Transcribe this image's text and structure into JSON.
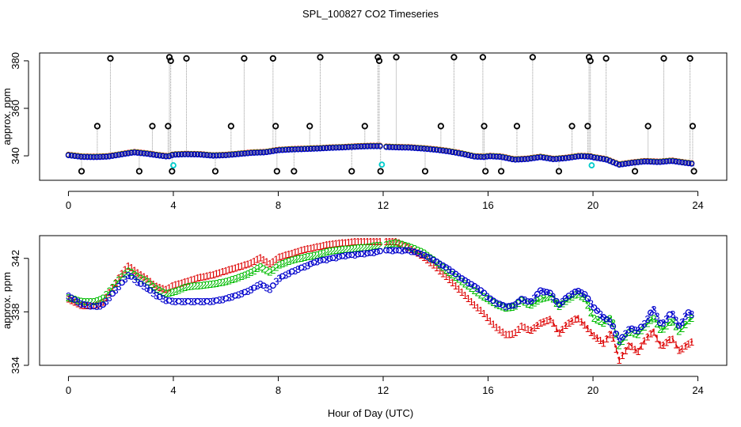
{
  "title": "SPL_100827  CO2 Timeseries",
  "xlabel": "Hour of Day (UTC)",
  "colors": {
    "series1": "#dd0000",
    "series2": "#00bb00",
    "series3": "#0000cc",
    "spike": "#000000",
    "outlier": "#00cccc",
    "stem": "#999999"
  },
  "chart_data": [
    {
      "type": "scatter",
      "panel": "top",
      "ylabel": "approx. ppm",
      "xlim": [
        -1.1,
        25.1
      ],
      "ylim": [
        329.7,
        383.3
      ],
      "xticks": [
        0,
        4,
        8,
        12,
        16,
        20,
        24
      ],
      "yticks": [
        340,
        360,
        380
      ],
      "baseline": {
        "x": [
          0,
          0.5,
          1,
          1.5,
          2,
          2.5,
          3,
          3.5,
          3.8,
          4,
          4.5,
          5,
          5.5,
          6,
          6.5,
          7,
          7.5,
          8,
          8.5,
          9,
          9.5,
          10,
          10.5,
          11,
          11.5,
          11.9,
          12,
          12.5,
          13,
          13.5,
          14,
          14.5,
          15,
          15.5,
          15.9,
          16,
          16.5,
          17,
          17.5,
          18,
          18.5,
          19,
          19.5,
          19.9,
          20,
          20.5,
          21,
          21.5,
          22,
          22.5,
          23,
          23.5,
          23.8
        ],
        "values": [
          340.2,
          339.5,
          339.4,
          339.6,
          340.5,
          341.4,
          340.8,
          340.0,
          339.6,
          340.4,
          340.6,
          340.5,
          340.0,
          340.2,
          340.7,
          341.2,
          341.4,
          342.3,
          342.6,
          342.8,
          343.0,
          343.3,
          343.5,
          343.8,
          344.0,
          344.0,
          343.7,
          343.5,
          343.4,
          343.0,
          342.5,
          341.8,
          340.8,
          339.6,
          339.4,
          339.8,
          339.5,
          338.3,
          338.6,
          339.4,
          338.5,
          339.0,
          339.8,
          339.6,
          339.3,
          338.4,
          336.2,
          337.0,
          337.6,
          337.3,
          337.8,
          337.0,
          336.6
        ]
      },
      "spikes": {
        "x": [
          0.5,
          1.1,
          1.6,
          2.7,
          3.2,
          3.8,
          3.85,
          3.9,
          3.95,
          4.5,
          5.6,
          6.2,
          6.7,
          7.8,
          7.9,
          7.95,
          8.6,
          9.2,
          9.6,
          10.8,
          11.3,
          11.8,
          11.85,
          11.9,
          12.5,
          13.6,
          14.2,
          14.7,
          15.8,
          15.85,
          15.9,
          16.5,
          17.1,
          17.7,
          18.7,
          19.2,
          19.8,
          19.85,
          19.9,
          20.5,
          21.6,
          22.1,
          22.7,
          23.7,
          23.8,
          23.85
        ],
        "values": [
          333.5,
          352.5,
          381.0,
          333.5,
          352.5,
          352.5,
          381.5,
          380.0,
          333.5,
          381.0,
          333.5,
          352.5,
          381.0,
          381.0,
          352.5,
          333.5,
          333.5,
          352.5,
          381.5,
          333.5,
          352.5,
          381.5,
          380.0,
          333.5,
          381.5,
          333.5,
          352.5,
          381.5,
          381.5,
          352.5,
          333.5,
          333.5,
          352.5,
          381.5,
          333.5,
          352.5,
          352.5,
          381.5,
          380.0,
          381.0,
          333.5,
          352.5,
          381.0,
          381.0,
          352.5,
          333.5
        ]
      },
      "outliers": {
        "x": [
          4.0,
          11.95,
          19.95
        ],
        "values": [
          336.0,
          336.3,
          336.0
        ]
      }
    },
    {
      "type": "scatter",
      "panel": "bottom",
      "ylabel": "approx. ppm",
      "xlim": [
        -1.1,
        25.1
      ],
      "ylim": [
        334.0,
        343.7
      ],
      "xticks": [
        0,
        4,
        8,
        12,
        16,
        20,
        24
      ],
      "yticks": [
        334,
        338,
        342
      ],
      "marker_labels": [
        "1",
        "2",
        "3"
      ],
      "x": [
        0,
        0.5,
        1,
        1.3,
        2,
        2.3,
        2.6,
        3,
        3.3,
        3.7,
        4,
        4.5,
        5,
        5.5,
        6,
        6.5,
        7,
        7.3,
        7.7,
        8,
        8.5,
        9,
        9.5,
        10,
        10.5,
        11,
        11.5,
        11.8,
        12,
        12.5,
        13,
        13.5,
        14,
        14.5,
        15,
        15.5,
        15.8,
        16,
        16.3,
        16.7,
        17,
        17.3,
        17.6,
        18,
        18.4,
        18.7,
        19,
        19.4,
        19.7,
        20,
        20.4,
        20.7,
        21,
        21.4,
        21.7,
        22,
        22.3,
        22.6,
        23,
        23.3,
        23.6,
        23.8
      ],
      "series": [
        {
          "name": "1",
          "values": [
            339.0,
            338.5,
            338.5,
            338.7,
            340.8,
            341.5,
            341.0,
            340.5,
            340.0,
            339.7,
            340.0,
            340.3,
            340.6,
            340.8,
            341.1,
            341.4,
            341.7,
            342.1,
            341.6,
            342.1,
            342.4,
            342.7,
            342.9,
            343.1,
            343.2,
            343.3,
            343.3,
            343.3,
            343.3,
            343.3,
            342.8,
            342.2,
            341.4,
            340.5,
            339.5,
            338.5,
            338.0,
            337.5,
            336.9,
            336.3,
            336.4,
            337.0,
            336.6,
            337.2,
            337.5,
            336.4,
            337.1,
            337.6,
            337.0,
            336.3,
            335.7,
            336.5,
            334.4,
            335.6,
            335.0,
            336.0,
            336.6,
            335.4,
            336.1,
            335.1,
            335.6,
            335.8
          ]
        },
        {
          "name": "2",
          "values": [
            339.1,
            338.8,
            338.8,
            339.0,
            340.6,
            341.1,
            340.7,
            340.3,
            339.8,
            339.4,
            339.5,
            339.9,
            340.0,
            340.1,
            340.3,
            340.6,
            341.0,
            341.4,
            341.0,
            341.5,
            341.9,
            342.1,
            342.3,
            342.6,
            342.7,
            342.8,
            342.9,
            343.0,
            343.0,
            343.2,
            342.9,
            342.5,
            341.8,
            341.0,
            340.3,
            339.6,
            339.2,
            339.0,
            338.6,
            338.3,
            338.4,
            338.9,
            338.5,
            339.0,
            339.2,
            338.4,
            338.9,
            339.4,
            339.0,
            337.6,
            337.2,
            337.6,
            335.5,
            336.6,
            336.3,
            337.0,
            337.6,
            336.6,
            337.4,
            336.5,
            337.3,
            337.6
          ]
        },
        {
          "name": "3",
          "values": [
            339.2,
            338.6,
            338.4,
            338.5,
            340.1,
            340.8,
            340.3,
            339.8,
            339.3,
            338.9,
            338.8,
            338.8,
            338.8,
            338.8,
            339.0,
            339.3,
            339.7,
            340.1,
            339.7,
            340.5,
            341.0,
            341.4,
            341.8,
            342.0,
            342.2,
            342.3,
            342.4,
            342.5,
            342.6,
            342.6,
            342.6,
            342.3,
            341.8,
            341.2,
            340.5,
            339.9,
            339.5,
            339.1,
            338.7,
            338.4,
            338.5,
            339.0,
            338.7,
            339.6,
            339.4,
            338.5,
            339.1,
            339.6,
            339.3,
            338.4,
            337.6,
            337.2,
            335.8,
            336.8,
            336.6,
            337.2,
            338.3,
            337.0,
            338.0,
            336.9,
            338.0,
            337.8
          ]
        }
      ]
    }
  ]
}
